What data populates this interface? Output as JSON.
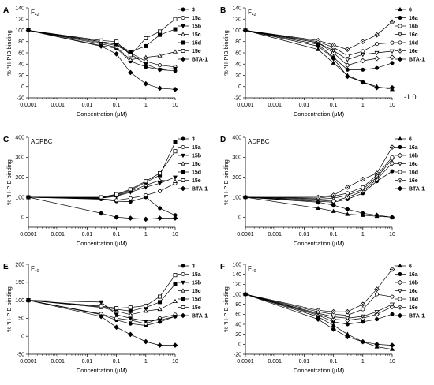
{
  "figure": {
    "side_note": "-1.0"
  },
  "chart_data": [
    {
      "panel": "A",
      "inset": "F",
      "inset_sub": "42",
      "type": "line",
      "xlabel": "Concentration (μM)",
      "ylabel": "% ³H-PIB binding",
      "xscale": "log",
      "xlim": [
        0.0001,
        10
      ],
      "xticks": [
        "0.0001",
        "0.001",
        "0.01",
        "0.1",
        "1",
        "10"
      ],
      "ylim": [
        -20,
        140
      ],
      "yticks": [
        -20,
        0,
        20,
        40,
        60,
        80,
        100,
        120,
        140
      ],
      "x": [
        0.0001,
        0.03,
        0.1,
        0.3,
        1,
        3,
        10
      ],
      "series": [
        {
          "name": "3",
          "marker": "filled-circle",
          "values": [
            100,
            73,
            68,
            45,
            35,
            30,
            28
          ]
        },
        {
          "name": "15a",
          "marker": "open-circle",
          "values": [
            100,
            78,
            73,
            60,
            45,
            38,
            35
          ]
        },
        {
          "name": "15b",
          "marker": "filled-triangle-down",
          "values": [
            100,
            80,
            75,
            58,
            40,
            30,
            32
          ]
        },
        {
          "name": "15c",
          "marker": "open-triangle-up",
          "values": [
            100,
            76,
            70,
            48,
            52,
            55,
            62
          ]
        },
        {
          "name": "15d",
          "marker": "filled-square",
          "values": [
            100,
            80,
            76,
            62,
            72,
            92,
            102
          ]
        },
        {
          "name": "15e",
          "marker": "open-square",
          "values": [
            100,
            82,
            80,
            56,
            86,
            98,
            120
          ]
        },
        {
          "name": "BTA-1",
          "marker": "filled-diamond",
          "values": [
            100,
            72,
            58,
            25,
            5,
            -3,
            -5
          ]
        }
      ]
    },
    {
      "panel": "B",
      "inset": "F",
      "inset_sub": "42",
      "type": "line",
      "xlabel": "Concentration (μM)",
      "ylabel": "% ³H-PIB binding",
      "xscale": "log",
      "xlim": [
        0.0001,
        10
      ],
      "xticks": [
        "0.0001",
        "0.001",
        "0.01",
        "0.1",
        "1",
        "10"
      ],
      "ylim": [
        -20,
        140
      ],
      "yticks": [
        -20,
        0,
        20,
        40,
        60,
        80,
        100,
        120,
        140
      ],
      "x": [
        0.0001,
        0.03,
        0.1,
        0.3,
        1,
        3,
        10
      ],
      "series": [
        {
          "name": "6",
          "marker": "filled-triangle-up",
          "values": [
            100,
            66,
            42,
            20,
            8,
            0,
            -5
          ]
        },
        {
          "name": "16a",
          "marker": "filled-circle",
          "values": [
            100,
            75,
            52,
            30,
            30,
            33,
            42
          ]
        },
        {
          "name": "16b",
          "marker": "open-diamond",
          "values": [
            100,
            78,
            60,
            38,
            46,
            50,
            52
          ]
        },
        {
          "name": "16c",
          "marker": "open-triangle-down",
          "values": [
            100,
            78,
            64,
            48,
            57,
            60,
            63
          ]
        },
        {
          "name": "16d",
          "marker": "open-circle",
          "values": [
            100,
            80,
            70,
            55,
            63,
            76,
            78
          ]
        },
        {
          "name": "16e",
          "marker": "open-diamond-dot",
          "values": [
            100,
            82,
            74,
            66,
            80,
            92,
            115
          ]
        },
        {
          "name": "BTA-1",
          "marker": "filled-diamond",
          "values": [
            100,
            72,
            50,
            18,
            8,
            -2,
            -2
          ]
        }
      ]
    },
    {
      "panel": "C",
      "inset": "ADPBC",
      "inset_sub": "",
      "type": "line",
      "xlabel": "Concentration (μM)",
      "ylabel": "% ³H-PIB binding",
      "xscale": "log",
      "xlim": [
        0.0001,
        10
      ],
      "xticks": [
        "0.0001",
        "0.001",
        "0.01",
        "0.1",
        "1",
        "10"
      ],
      "ylim": [
        -50,
        400
      ],
      "yticks": [
        0,
        100,
        200,
        300,
        400
      ],
      "x": [
        0.0001,
        0.03,
        0.1,
        0.3,
        1,
        3,
        10
      ],
      "series": [
        {
          "name": "3",
          "marker": "filled-circle",
          "values": [
            100,
            90,
            80,
            78,
            100,
            45,
            10
          ]
        },
        {
          "name": "15a",
          "marker": "open-circle",
          "values": [
            100,
            92,
            85,
            95,
            110,
            130,
            170
          ]
        },
        {
          "name": "15b",
          "marker": "filled-triangle-down",
          "values": [
            100,
            95,
            105,
            125,
            150,
            170,
            200
          ]
        },
        {
          "name": "15c",
          "marker": "open-triangle-up",
          "values": [
            100,
            96,
            108,
            130,
            160,
            185,
            180
          ]
        },
        {
          "name": "15d",
          "marker": "filled-square",
          "values": [
            100,
            98,
            112,
            135,
            175,
            210,
            375
          ]
        },
        {
          "name": "15e",
          "marker": "open-square",
          "values": [
            100,
            100,
            115,
            140,
            180,
            220,
            330
          ]
        },
        {
          "name": "BTA-1",
          "marker": "filled-diamond",
          "values": [
            100,
            20,
            0,
            -5,
            -10,
            -5,
            -5
          ]
        }
      ]
    },
    {
      "panel": "D",
      "inset": "ADPBC",
      "inset_sub": "",
      "type": "line",
      "xlabel": "Concentration (μM)",
      "ylabel": "% ³H-PIB binding",
      "xscale": "log",
      "xlim": [
        0.0001,
        10
      ],
      "xticks": [
        "0.0001",
        "0.001",
        "0.01",
        "0.1",
        "1",
        "10"
      ],
      "ylim": [
        -50,
        400
      ],
      "yticks": [
        0,
        100,
        200,
        300,
        400
      ],
      "x": [
        0.0001,
        0.03,
        0.1,
        0.3,
        1,
        3,
        10
      ],
      "series": [
        {
          "name": "6",
          "marker": "filled-triangle-up",
          "values": [
            100,
            45,
            30,
            15,
            10,
            5,
            0
          ]
        },
        {
          "name": "16a",
          "marker": "filled-circle",
          "values": [
            100,
            80,
            75,
            90,
            120,
            180,
            230
          ]
        },
        {
          "name": "16b",
          "marker": "open-diamond",
          "values": [
            100,
            85,
            80,
            100,
            130,
            190,
            270
          ]
        },
        {
          "name": "16c",
          "marker": "open-triangle-down",
          "values": [
            100,
            90,
            95,
            110,
            140,
            200,
            290
          ]
        },
        {
          "name": "16d",
          "marker": "open-circle",
          "values": [
            100,
            95,
            105,
            120,
            150,
            210,
            300
          ]
        },
        {
          "name": "16e",
          "marker": "open-diamond-dot",
          "values": [
            100,
            100,
            110,
            150,
            190,
            220,
            350
          ]
        },
        {
          "name": "BTA-1",
          "marker": "filled-diamond",
          "values": [
            100,
            75,
            60,
            40,
            20,
            10,
            0
          ]
        }
      ]
    },
    {
      "panel": "E",
      "inset": "F",
      "inset_sub": "40",
      "type": "line",
      "xlabel": "Concentration (μM)",
      "ylabel": "% ³H-PIB binding",
      "xscale": "log",
      "xlim": [
        0.0001,
        10
      ],
      "xticks": [
        "0.0001",
        "0.001",
        "0.01",
        "0.1",
        "1",
        "10"
      ],
      "ylim": [
        -50,
        200
      ],
      "yticks": [
        -50,
        0,
        50,
        100,
        150,
        200
      ],
      "x": [
        0.0001,
        0.03,
        0.1,
        0.3,
        1,
        3,
        10
      ],
      "series": [
        {
          "name": "3",
          "marker": "filled-circle",
          "values": [
            100,
            60,
            45,
            35,
            30,
            40,
            55
          ]
        },
        {
          "name": "15a",
          "marker": "open-circle",
          "values": [
            100,
            62,
            50,
            45,
            35,
            50,
            60
          ]
        },
        {
          "name": "15b",
          "marker": "filled-triangle-down",
          "values": [
            100,
            95,
            60,
            50,
            42,
            45,
            55
          ]
        },
        {
          "name": "15c",
          "marker": "open-triangle-up",
          "values": [
            100,
            80,
            70,
            60,
            70,
            75,
            97
          ]
        },
        {
          "name": "15d",
          "marker": "filled-square",
          "values": [
            100,
            82,
            75,
            70,
            80,
            95,
            145
          ]
        },
        {
          "name": "15e",
          "marker": "open-square",
          "values": [
            100,
            84,
            78,
            80,
            85,
            110,
            170
          ]
        },
        {
          "name": "BTA-1",
          "marker": "filled-diamond",
          "values": [
            100,
            55,
            25,
            5,
            -15,
            -25,
            -25
          ]
        }
      ]
    },
    {
      "panel": "F",
      "inset": "F",
      "inset_sub": "40",
      "type": "line",
      "xlabel": "Concentration (μM)",
      "ylabel": "% ³H-PIB binding",
      "xscale": "log",
      "xlim": [
        0.0001,
        10
      ],
      "xticks": [
        "0.0001",
        "0.001",
        "0.01",
        "0.1",
        "1",
        "10"
      ],
      "ylim": [
        -20,
        160
      ],
      "yticks": [
        -20,
        0,
        20,
        40,
        60,
        80,
        100,
        120,
        140,
        160
      ],
      "x": [
        0.0001,
        0.03,
        0.1,
        0.3,
        1,
        3,
        10
      ],
      "series": [
        {
          "name": "6",
          "marker": "filled-triangle-up",
          "values": [
            100,
            55,
            38,
            20,
            5,
            -5,
            -10
          ]
        },
        {
          "name": "16a",
          "marker": "filled-circle",
          "values": [
            100,
            58,
            45,
            40,
            45,
            50,
            60
          ]
        },
        {
          "name": "16b",
          "marker": "open-diamond",
          "values": [
            100,
            60,
            50,
            48,
            52,
            60,
            75
          ]
        },
        {
          "name": "16c",
          "marker": "open-triangle-down",
          "values": [
            100,
            62,
            55,
            52,
            56,
            65,
            80
          ]
        },
        {
          "name": "16d",
          "marker": "open-circle",
          "values": [
            100,
            65,
            60,
            58,
            70,
            100,
            95
          ]
        },
        {
          "name": "16e",
          "marker": "open-diamond-dot",
          "values": [
            100,
            68,
            65,
            65,
            80,
            110,
            150
          ]
        },
        {
          "name": "BTA-1",
          "marker": "filled-diamond",
          "values": [
            100,
            50,
            30,
            15,
            5,
            0,
            -2
          ]
        }
      ]
    }
  ]
}
